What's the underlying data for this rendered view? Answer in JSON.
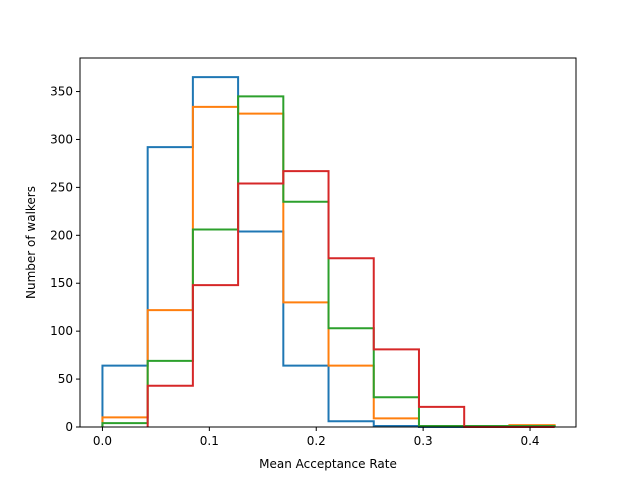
{
  "chart_data": {
    "type": "histogram",
    "title": "",
    "xlabel": "Mean Acceptance Rate",
    "ylabel": "Number of walkers",
    "xlim": [
      -0.021,
      0.443
    ],
    "ylim": [
      0,
      385
    ],
    "grid": false,
    "legend": "none",
    "histtype": "step",
    "bin_edges": [
      0.0,
      0.0423,
      0.0846,
      0.1269,
      0.1692,
      0.2115,
      0.2538,
      0.2961,
      0.3384,
      0.3807,
      0.423
    ],
    "x_ticks": [
      0.0,
      0.1,
      0.2,
      0.3,
      0.4
    ],
    "x_tick_labels": [
      "0.0",
      "0.1",
      "0.2",
      "0.3",
      "0.4"
    ],
    "y_ticks": [
      0,
      50,
      100,
      150,
      200,
      250,
      300,
      350
    ],
    "y_tick_labels": [
      "0",
      "50",
      "100",
      "150",
      "200",
      "250",
      "300",
      "350"
    ],
    "series": [
      {
        "color": "#1f77b4",
        "x_start": 0.0,
        "values": [
          64,
          292,
          365,
          204,
          64,
          6,
          1,
          0,
          0,
          0
        ]
      },
      {
        "color": "#ff7f0e",
        "x_start": 0.0,
        "values": [
          10,
          122,
          334,
          327,
          130,
          64,
          9,
          1,
          1,
          2
        ]
      },
      {
        "color": "#2ca02c",
        "x_start": 0.0,
        "values": [
          4,
          69,
          206,
          345,
          235,
          103,
          31,
          1,
          1,
          1
        ]
      },
      {
        "color": "#d62728",
        "x_start": 0.0423,
        "values": [
          43,
          148,
          254,
          267,
          176,
          81,
          21,
          0,
          0
        ]
      }
    ]
  }
}
